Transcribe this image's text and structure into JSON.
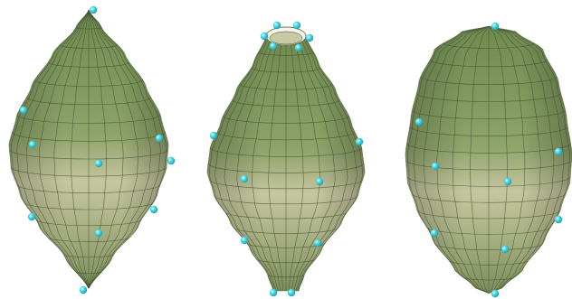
{
  "figure": {
    "background": "#ffffff",
    "panels": [
      {
        "id": "pointed-spindle",
        "top": "cone-apex",
        "bottom": "cone-apex",
        "control_points_visible": 10
      },
      {
        "id": "open-top-vase",
        "top": "open-ring",
        "bottom": "narrow-ring",
        "control_points_visible": 13
      },
      {
        "id": "rounded-spindle",
        "top": "rounded-cap",
        "bottom": "rounded-cap",
        "control_points_visible": 9
      }
    ],
    "colors": {
      "surface_light": "#c9c9a4",
      "surface_mid": "#8fa26a",
      "surface_dark": "#5c7043",
      "grid_line": "#3c4a2c",
      "control_point": "#3fd3df",
      "control_point_highlight": "#c8fbff"
    },
    "icons": {
      "control_point": "sphere-marker-icon"
    }
  }
}
